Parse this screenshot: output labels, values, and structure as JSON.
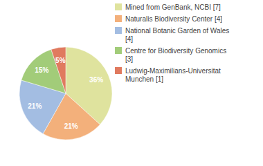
{
  "chart_data": {
    "type": "pie",
    "categories": [
      "Mined from GenBank, NCBI [7]",
      "Naturalis Biodiversity Center [4]",
      "National Botanic Garden of Wales [4]",
      "Centre for Biodiversity Genomics [3]",
      "Ludwig-Maximilians-Universitat Munchen [1]"
    ],
    "values": [
      36,
      21,
      21,
      15,
      5
    ],
    "value_labels": [
      "36%",
      "21%",
      "21%",
      "15%",
      "5%"
    ],
    "colors": [
      "#dfe39e",
      "#f3b07b",
      "#a3bde2",
      "#a2cc79",
      "#e07a5f"
    ],
    "data_labels": true,
    "legend": "upper right"
  }
}
